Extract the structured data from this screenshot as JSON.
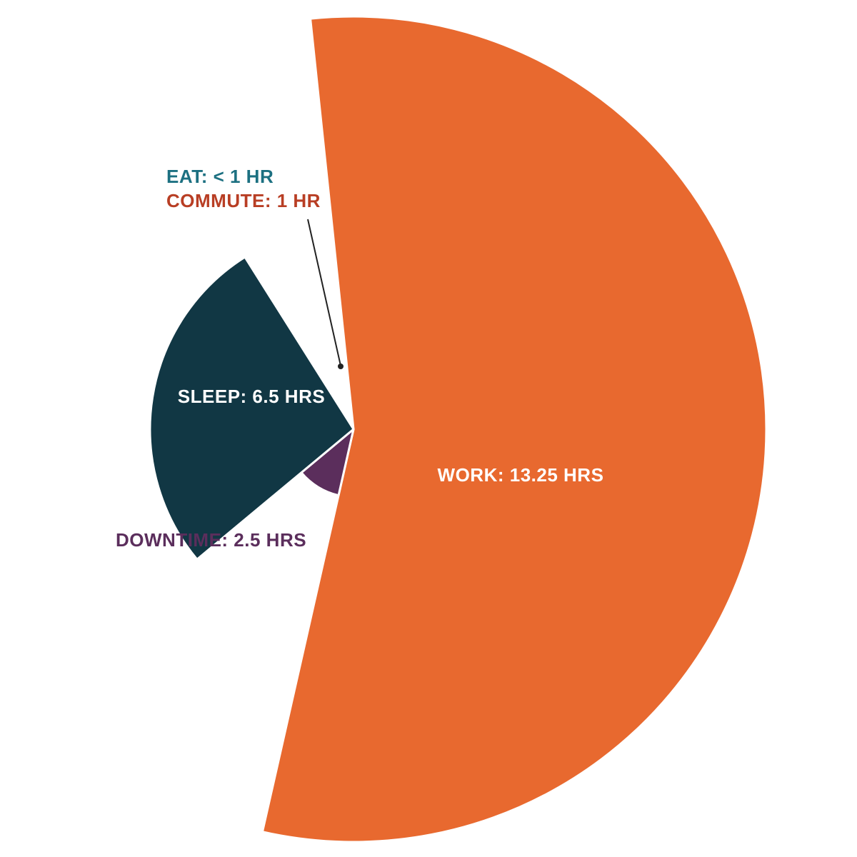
{
  "chart_data": {
    "type": "pie",
    "variant": "polar-area",
    "title": "",
    "slices": [
      {
        "label": "WORK: 13.25 HRS",
        "category": "WORK",
        "hours": 13.25,
        "color": "#E8692F"
      },
      {
        "label": "DOWNTIME: 2.5 HRS",
        "category": "DOWNTIME",
        "hours": 2.5,
        "color": "#5B2E5C"
      },
      {
        "label": "SLEEP: 6.5 HRS",
        "category": "SLEEP",
        "hours": 6.5,
        "color": "#113744"
      },
      {
        "label": "COMMUTE: 1 HR",
        "category": "COMMUTE",
        "hours": 1,
        "color": "#B83E24"
      },
      {
        "label": "EAT: < 1 HR",
        "category": "EAT",
        "hours": 0.75,
        "color": "#1C7081"
      }
    ],
    "legend": "none",
    "label_text_colors": {
      "work": "#FFFFFF",
      "sleep": "#FFFFFF",
      "downtime": "#5B2E5C",
      "commute": "#B83E24",
      "eat": "#1C7081"
    },
    "leader_line_color": "#222222"
  }
}
